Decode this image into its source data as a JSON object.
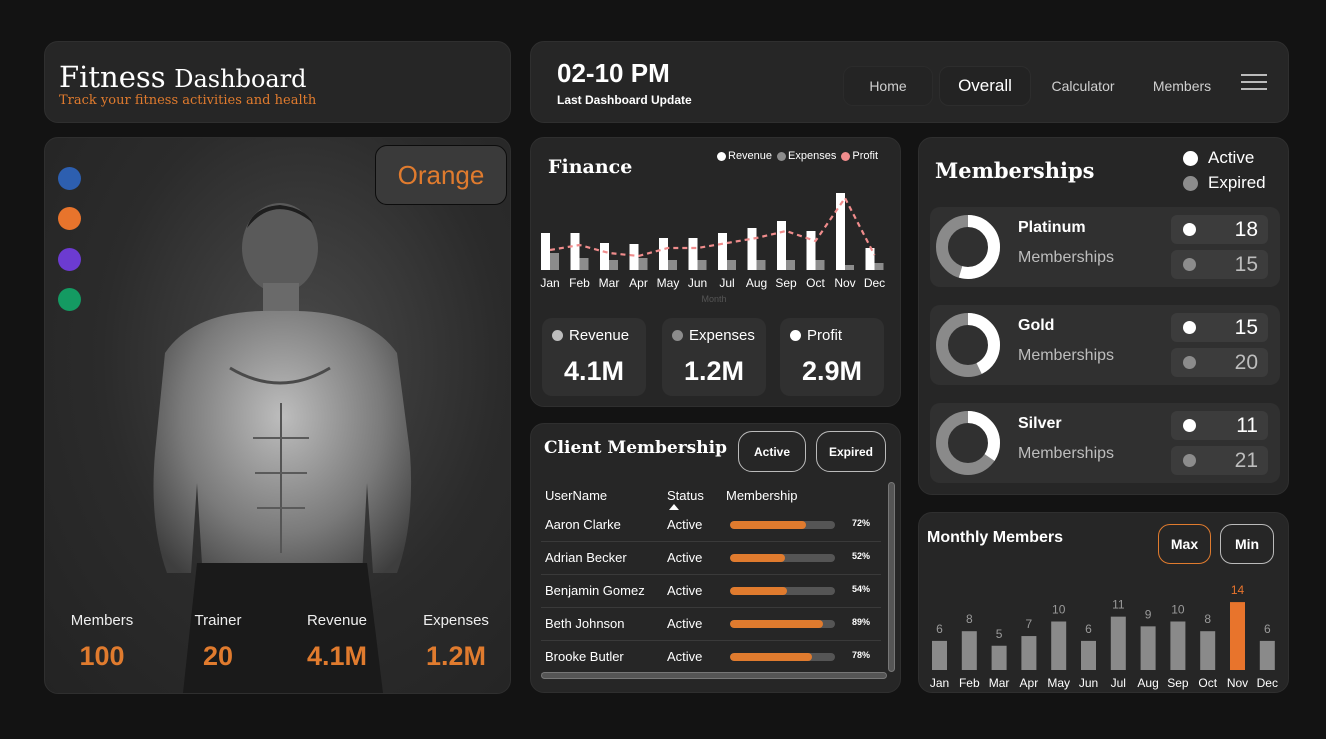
{
  "header": {
    "title_word1": "Fitness",
    "title_word2": "Dashboard",
    "subtitle": "Track your fitness activities and health",
    "update_time": "02-10 PM",
    "update_label": "Last Dashboard Update",
    "nav": [
      "Home",
      "Overall",
      "Calculator",
      "Members"
    ]
  },
  "theme": {
    "selected": "Orange",
    "swatches": [
      "#2d5fb0",
      "#e8742c",
      "#6c3bd1",
      "#149a62"
    ]
  },
  "summary": [
    {
      "label": "Members",
      "value": "100"
    },
    {
      "label": "Trainer",
      "value": "20"
    },
    {
      "label": "Revenue",
      "value": "4.1M"
    },
    {
      "label": "Expenses",
      "value": "1.2M"
    }
  ],
  "finance": {
    "title": "Finance",
    "legend": [
      "Revenue",
      "Expenses",
      "Profit"
    ],
    "kpis": [
      {
        "label": "Revenue",
        "value": "4.1M",
        "color": "#bdbdbd"
      },
      {
        "label": "Expenses",
        "value": "1.2M",
        "color": "#8c8c8c"
      },
      {
        "label": "Profit",
        "value": "2.9M",
        "color": "#ffffff"
      }
    ]
  },
  "chart_data": [
    {
      "type": "bar",
      "title": "Finance",
      "xlabel": "Month",
      "categories": [
        "Jan",
        "Feb",
        "Mar",
        "Apr",
        "May",
        "Jun",
        "Jul",
        "Aug",
        "Sep",
        "Oct",
        "Nov",
        "Dec"
      ],
      "series": [
        {
          "name": "Revenue",
          "type": "bar",
          "values": [
            37,
            37,
            27,
            26,
            32,
            32,
            37,
            42,
            49,
            39,
            77,
            22
          ]
        },
        {
          "name": "Expenses",
          "type": "bar",
          "values": [
            17,
            12,
            10,
            12,
            10,
            10,
            10,
            10,
            10,
            10,
            5,
            7
          ]
        },
        {
          "name": "Profit",
          "type": "line",
          "values": [
            20,
            25,
            17,
            14,
            22,
            22,
            27,
            32,
            39,
            29,
            72,
            15
          ]
        }
      ],
      "colors": {
        "Revenue": "#ffffff",
        "Expenses": "#8c8c8c",
        "Profit": "#f08c8c"
      }
    },
    {
      "type": "bar",
      "title": "Monthly Members",
      "categories": [
        "Jan",
        "Feb",
        "Mar",
        "Apr",
        "May",
        "Jun",
        "Jul",
        "Aug",
        "Sep",
        "Oct",
        "Nov",
        "Dec"
      ],
      "values": [
        6,
        8,
        5,
        7,
        10,
        6,
        11,
        9,
        10,
        8,
        14,
        6
      ],
      "highlight_index": 10,
      "colors": {
        "bar": "#8a8a8a",
        "highlight": "#e8742c"
      }
    }
  ],
  "client": {
    "title": "Client Membership",
    "filter_active": "Active",
    "filter_expired": "Expired",
    "columns": [
      "UserName",
      "Status",
      "Membership"
    ],
    "rows": [
      {
        "name": "Aaron Clarke",
        "status": "Active",
        "pct": 72,
        "pct_label": "72%"
      },
      {
        "name": "Adrian Becker",
        "status": "Active",
        "pct": 52,
        "pct_label": "52%"
      },
      {
        "name": "Benjamin Gomez",
        "status": "Active",
        "pct": 54,
        "pct_label": "54%"
      },
      {
        "name": "Beth Johnson",
        "status": "Active",
        "pct": 89,
        "pct_label": "89%"
      },
      {
        "name": "Brooke Butler",
        "status": "Active",
        "pct": 78,
        "pct_label": "78%"
      }
    ]
  },
  "memberships": {
    "title": "Memberships",
    "legend_active": "Active",
    "legend_expired": "Expired",
    "tiers": [
      {
        "name": "Platinum",
        "sub": "Memberships",
        "active": "18",
        "expired": "15",
        "active_n": 18,
        "expired_n": 15
      },
      {
        "name": "Gold",
        "sub": "Memberships",
        "active": "15",
        "expired": "20",
        "active_n": 15,
        "expired_n": 20
      },
      {
        "name": "Silver",
        "sub": "Memberships",
        "active": "11",
        "expired": "21",
        "active_n": 11,
        "expired_n": 21
      }
    ]
  },
  "monthly": {
    "title": "Monthly Members",
    "max_label": "Max",
    "min_label": "Min"
  }
}
